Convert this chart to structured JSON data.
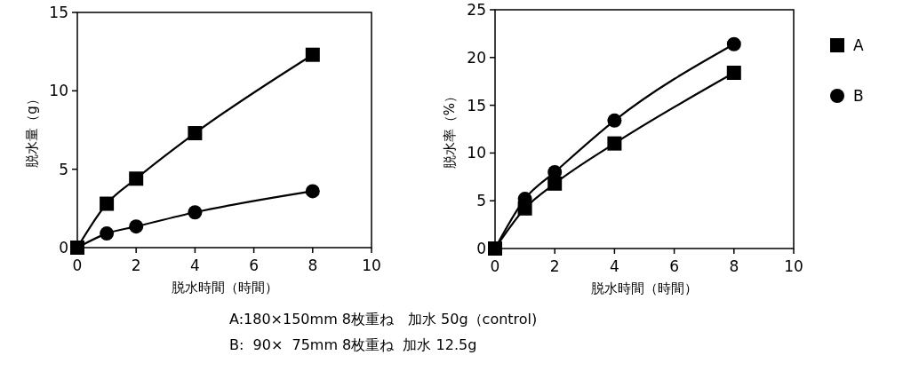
{
  "chart_data": [
    {
      "type": "line",
      "xlabel": "脱水時間（時間）",
      "ylabel": "脱水量（g）",
      "x": [
        0,
        1,
        2,
        4,
        8
      ],
      "xlim": [
        0,
        10
      ],
      "xticks": [
        0,
        2,
        4,
        6,
        8,
        10
      ],
      "ylim": [
        0,
        15
      ],
      "yticks": [
        0,
        5,
        10,
        15
      ],
      "grid": false,
      "legend": false,
      "series": [
        {
          "color": "#000000",
          "marker": "square",
          "values": [
            0,
            2.8,
            4.4,
            7.3,
            12.3
          ]
        },
        {
          "color": "#000000",
          "marker": "circle",
          "values": [
            0,
            0.9,
            1.35,
            2.25,
            3.6
          ]
        }
      ]
    },
    {
      "type": "line",
      "xlabel": "脱水時間（時間）",
      "ylabel": "脱水率（%）",
      "x": [
        0,
        1,
        2,
        4,
        8
      ],
      "xlim": [
        0,
        10
      ],
      "xticks": [
        0,
        2,
        4,
        6,
        8,
        10
      ],
      "ylim": [
        0,
        25
      ],
      "yticks": [
        0,
        5,
        10,
        15,
        20,
        25
      ],
      "grid": false,
      "legend": "right",
      "annotations": [
        "A:180×150mm 8枚重ね　加水 50g（control)",
        "B:  90×  75mm 8枚重ね  加水 12.5g"
      ],
      "series": [
        {
          "name": "A",
          "color": "#000000",
          "marker": "square",
          "values": [
            0,
            4.2,
            6.8,
            11,
            18.4
          ]
        },
        {
          "name": "B",
          "color": "#000000",
          "marker": "circle",
          "values": [
            0,
            5.2,
            8,
            13.4,
            21.4
          ]
        }
      ]
    }
  ]
}
